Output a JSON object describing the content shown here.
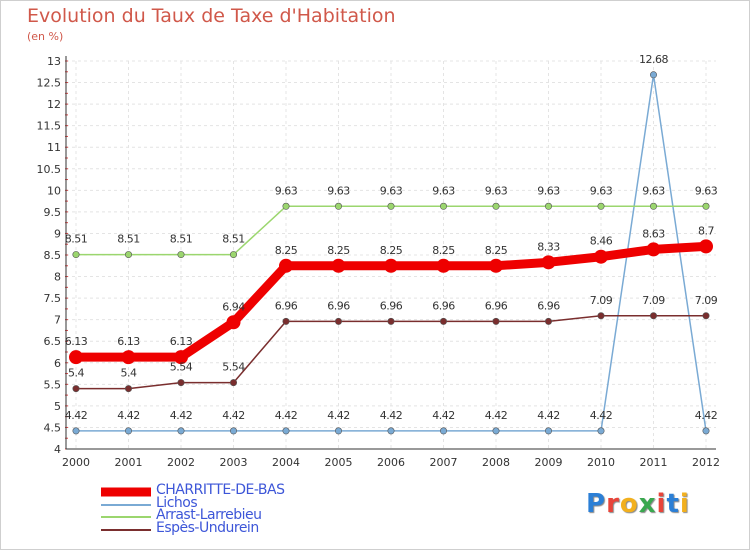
{
  "header": {
    "title": "Evolution du Taux de Taxe d'Habitation",
    "subtitle": "(en %)"
  },
  "brand": {
    "text": "Proxiti",
    "colors": [
      "#2b7fd6",
      "#e8443a",
      "#f2b01e",
      "#3aa84f",
      "#e8443a",
      "#2b7fd6",
      "#f2b01e"
    ]
  },
  "chart_data": {
    "type": "line",
    "x": [
      "2000",
      "2001",
      "2002",
      "2003",
      "2004",
      "2005",
      "2006",
      "2007",
      "2008",
      "2009",
      "2010",
      "2011",
      "2012"
    ],
    "ylim": [
      4,
      13
    ],
    "yticks": [
      "4",
      "4.5",
      "5",
      "5.5",
      "6",
      "6.5",
      "7",
      "7.5",
      "8",
      "8.5",
      "9",
      "9.5",
      "10",
      "10.5",
      "11",
      "11.5",
      "12",
      "12.5",
      "13"
    ],
    "grid": true,
    "legend_position": "bottom-left",
    "series": [
      {
        "name": "CHARRITTE-DE-BAS",
        "color": "#ee0000",
        "values": [
          6.13,
          6.13,
          6.13,
          6.94,
          8.25,
          8.25,
          8.25,
          8.25,
          8.25,
          8.33,
          8.46,
          8.63,
          8.7
        ],
        "labels": [
          "6.13",
          "6.13",
          "6.13",
          "6.94",
          "8.25",
          "8.25",
          "8.25",
          "8.25",
          "8.25",
          "8.33",
          "8.46",
          "8.63",
          "8.7"
        ]
      },
      {
        "name": "Lichos",
        "color": "#7aaad4",
        "values": [
          4.42,
          4.42,
          4.42,
          4.42,
          4.42,
          4.42,
          4.42,
          4.42,
          4.42,
          4.42,
          4.42,
          12.68,
          4.42
        ],
        "labels": [
          "4.42",
          "4.42",
          "4.42",
          "4.42",
          "4.42",
          "4.42",
          "4.42",
          "4.42",
          "4.42",
          "4.42",
          "4.42",
          "12.68",
          "4.42"
        ]
      },
      {
        "name": "Arrast-Larrebieu",
        "color": "#9bd66e",
        "values": [
          8.51,
          8.51,
          8.51,
          8.51,
          9.63,
          9.63,
          9.63,
          9.63,
          9.63,
          9.63,
          9.63,
          9.63,
          9.63
        ],
        "labels": [
          "8.51",
          "8.51",
          "8.51",
          "8.51",
          "9.63",
          "9.63",
          "9.63",
          "9.63",
          "9.63",
          "9.63",
          "9.63",
          "9.63",
          "9.63"
        ]
      },
      {
        "name": "Espès-Undurein",
        "color": "#7a2e2e",
        "values": [
          5.4,
          5.4,
          5.54,
          5.54,
          6.96,
          6.96,
          6.96,
          6.96,
          6.96,
          6.96,
          7.09,
          7.09,
          7.09
        ],
        "labels": [
          "5.4",
          "5.4",
          "5.54",
          "5.54",
          "6.96",
          "6.96",
          "6.96",
          "6.96",
          "6.96",
          "6.96",
          "7.09",
          "7.09",
          "7.09"
        ]
      }
    ]
  }
}
